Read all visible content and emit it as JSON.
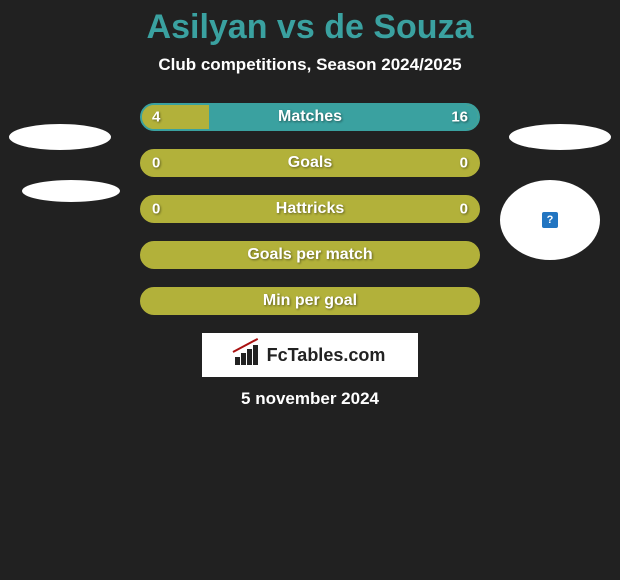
{
  "page": {
    "background_color": "#212121",
    "title": "Asilyan vs de Souza",
    "title_color": "#3aa1a0",
    "subtitle": "Club competitions, Season 2024/2025",
    "footer_date": "5 november 2024"
  },
  "brand": {
    "text": "FcTables.com"
  },
  "avatars": {
    "right2_badge": "?"
  },
  "colors": {
    "olive": "#b2b13a",
    "teal": "#3aa1a0",
    "bar_text": "#ffffff"
  },
  "bars": [
    {
      "label": "Matches",
      "left_value": "4",
      "right_value": "16",
      "left_num": 4,
      "right_num": 16,
      "left_pct": 20,
      "right_pct": 80,
      "left_color": "#b2b13a",
      "right_color": "#3aa1a0",
      "border_color": "#3aa1a0"
    },
    {
      "label": "Goals",
      "left_value": "0",
      "right_value": "0",
      "left_num": 0,
      "right_num": 0,
      "left_pct": 100,
      "right_pct": 0,
      "left_color": "#b2b13a",
      "right_color": "#3aa1a0",
      "border_color": "#b2b13a"
    },
    {
      "label": "Hattricks",
      "left_value": "0",
      "right_value": "0",
      "left_num": 0,
      "right_num": 0,
      "left_pct": 100,
      "right_pct": 0,
      "left_color": "#b2b13a",
      "right_color": "#3aa1a0",
      "border_color": "#b2b13a"
    },
    {
      "label": "Goals per match",
      "left_value": "",
      "right_value": "",
      "left_num": 0,
      "right_num": 0,
      "left_pct": 100,
      "right_pct": 0,
      "left_color": "#b2b13a",
      "right_color": "#3aa1a0",
      "border_color": "#b2b13a"
    },
    {
      "label": "Min per goal",
      "left_value": "",
      "right_value": "",
      "left_num": 0,
      "right_num": 0,
      "left_pct": 100,
      "right_pct": 0,
      "left_color": "#b2b13a",
      "right_color": "#3aa1a0",
      "border_color": "#b2b13a"
    }
  ]
}
